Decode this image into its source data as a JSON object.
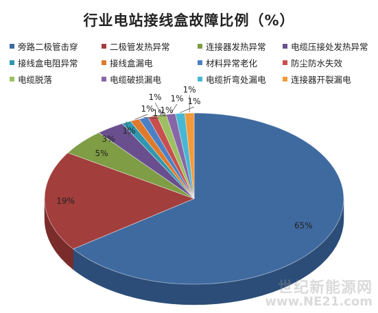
{
  "title": "行业电站接线盒故障比例（%）",
  "watermark": {
    "line1": "世纪新能源网",
    "line2": "www.NE21.com"
  },
  "chart_data": {
    "type": "pie",
    "title": "行业电站接线盒故障比例（%）",
    "legend_position": "top",
    "slices": [
      {
        "label": "旁路二极管击穿",
        "value": 65,
        "display": "65%",
        "color": "#3F6AA0",
        "side": "#2C4D78"
      },
      {
        "label": "二极管发热异常",
        "value": 19,
        "display": "19%",
        "color": "#A23E3C",
        "side": "#7A2C2B"
      },
      {
        "label": "连接器发热异常",
        "value": 5,
        "display": "5%",
        "color": "#7E9D45",
        "side": "#5E7833"
      },
      {
        "label": "电缆压接处发热异常",
        "value": 3,
        "display": "3%",
        "color": "#6A4F8F",
        "side": "#4E3A6C"
      },
      {
        "label": "接线盒电阻异常",
        "value": 1,
        "display": "1%",
        "color": "#2F97AE",
        "side": "#227084"
      },
      {
        "label": "接线盒漏电",
        "value": 1,
        "display": "1%",
        "color": "#E07A2A",
        "side": "#AE5E1F"
      },
      {
        "label": "材料异常老化",
        "value": 1,
        "display": "1%",
        "color": "#4A80C6",
        "side": "#355E93"
      },
      {
        "label": "防尘防水失效",
        "value": 1,
        "display": "1%",
        "color": "#C84F4D",
        "side": "#983B3A"
      },
      {
        "label": "电缆脱落",
        "value": 1,
        "display": "1%",
        "color": "#9CC061",
        "side": "#759248"
      },
      {
        "label": "电缆破损漏电",
        "value": 1,
        "display": "1%",
        "color": "#8766A8",
        "side": "#654C7E"
      },
      {
        "label": "电缆折弯处漏电",
        "value": 1,
        "display": "1%",
        "color": "#48B7D2",
        "side": "#3589A0"
      },
      {
        "label": "连接器开裂漏电",
        "value": 1,
        "display": "1%",
        "color": "#F39A3C",
        "side": "#BD772D"
      }
    ]
  }
}
